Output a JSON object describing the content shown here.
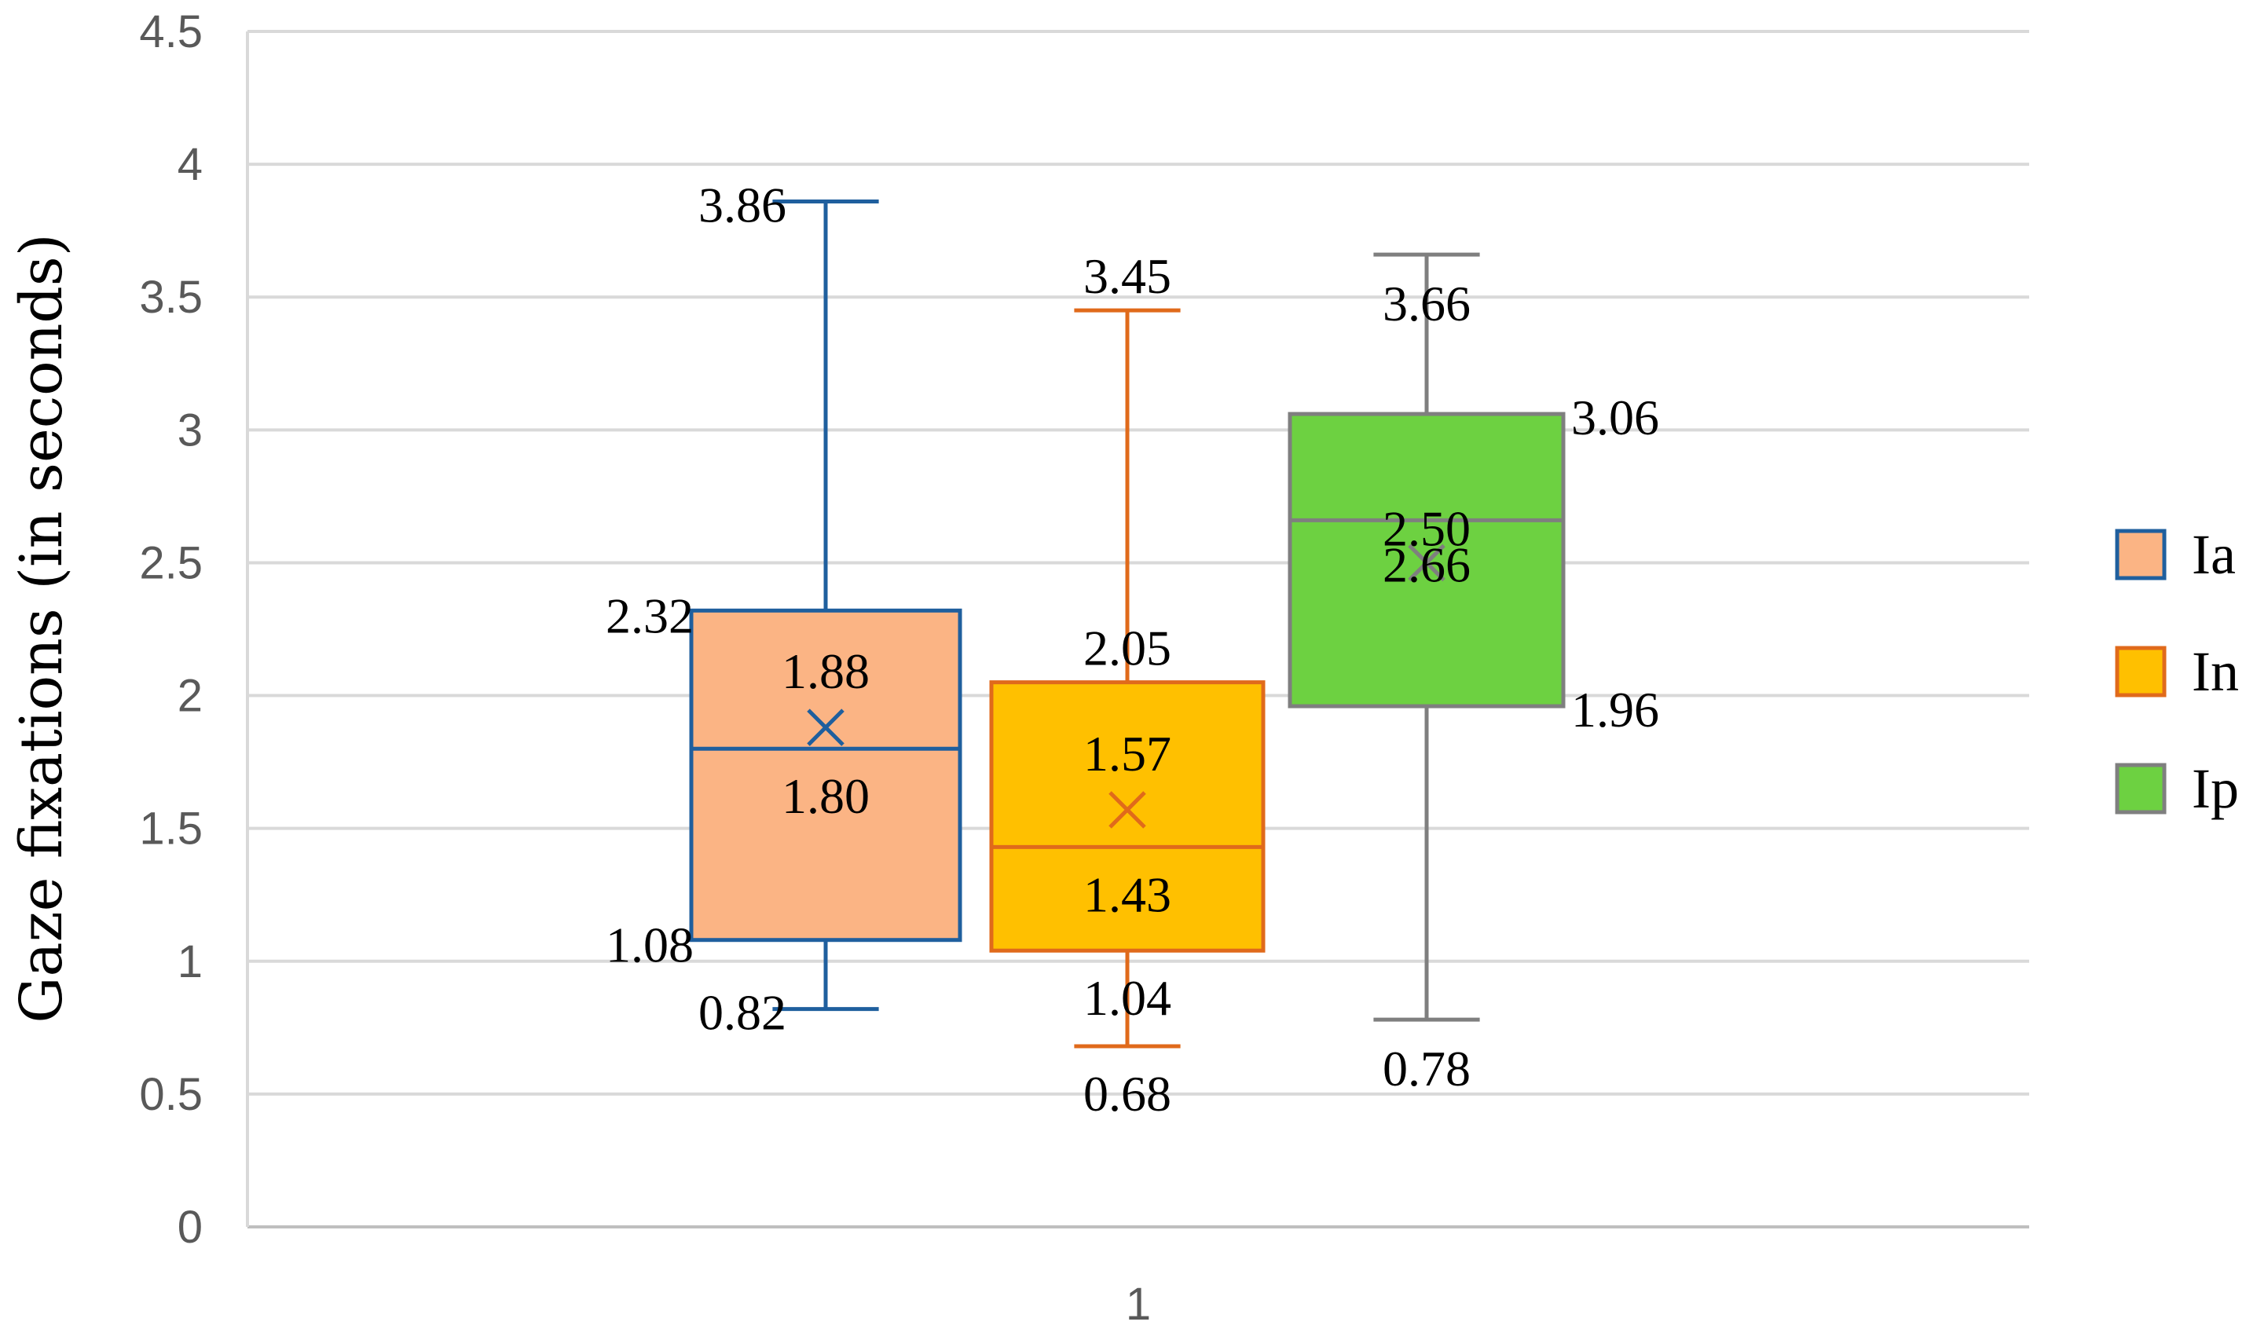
{
  "chart_data": {
    "type": "box",
    "title": "",
    "xlabel": "",
    "ylabel": "Gaze fixations (in seconds)",
    "ylim": [
      0,
      4.5
    ],
    "yticks": [
      "0",
      "0.5",
      "1",
      "1.5",
      "2",
      "2.5",
      "3",
      "3.5",
      "4",
      "4.5"
    ],
    "categories": [
      "1"
    ],
    "grid": true,
    "legend_position": "right",
    "series": [
      {
        "name": "Ia",
        "min": 0.82,
        "q1": 1.08,
        "median": 1.8,
        "mean": 1.88,
        "q3": 2.32,
        "max": 3.86,
        "fill": "#FBB484",
        "stroke": "#1F5F9E",
        "labels": {
          "min": "0.82",
          "q1": "1.08",
          "median": "1.80",
          "mean": "1.88",
          "q3": "2.32",
          "max": "3.86"
        }
      },
      {
        "name": "In",
        "min": 0.68,
        "q1": 1.04,
        "median": 1.43,
        "mean": 1.57,
        "q3": 2.05,
        "max": 3.45,
        "fill": "#FFC000",
        "stroke": "#E06A1B",
        "labels": {
          "min": "0.68",
          "q1": "1.04",
          "median": "1.43",
          "mean": "1.57",
          "q3": "2.05",
          "max": "3.45"
        }
      },
      {
        "name": "Ip",
        "min": 0.78,
        "q1": 1.96,
        "median": 2.66,
        "mean": 2.5,
        "q3": 3.06,
        "max": 3.66,
        "fill": "#6DD141",
        "stroke": "#7F7F7F",
        "labels": {
          "min": "0.78",
          "q1": "1.96",
          "median": "2.66",
          "mean": "2.50",
          "q3": "3.06",
          "max": "3.66"
        }
      }
    ]
  }
}
